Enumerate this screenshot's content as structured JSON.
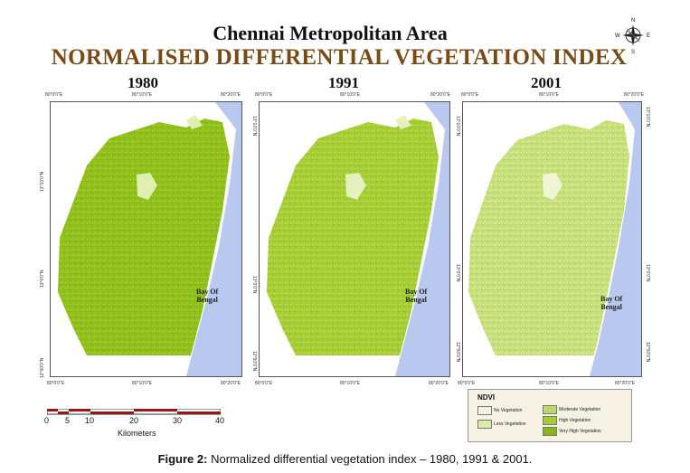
{
  "header": {
    "title": "Chennai Metropolitan Area",
    "subtitle": "NORMALISED DIFFERENTIAL VEGETATION INDEX"
  },
  "compass": {
    "n": "N",
    "s": "S",
    "e": "E",
    "w": "W"
  },
  "panels": [
    {
      "year": "1980",
      "fill": "#8fbf1a",
      "top_ticks": [
        "80°0'0\"E",
        "80°10'0\"E",
        "80°20'0\"E"
      ],
      "bottom_ticks": [
        "80°0'0\"E",
        "80°10'0\"E",
        "80°20'0\"E"
      ],
      "left_ticks": [
        "13°10'0\"N",
        "13°0'0\"N",
        "12°50'0\"N"
      ],
      "bay_label": "Bay Of\nBengal"
    },
    {
      "year": "1991",
      "fill": "#a6cc33",
      "top_ticks": [
        "80°0'0\"E",
        "80°10'0\"E",
        "80°20'0\"E"
      ],
      "bottom_ticks": [
        "80°0'0\"E",
        "80°10'0\"E",
        "80°20'0\"E"
      ],
      "left_ticks": [
        "13°10'0\"N",
        "13°0'0\"N",
        "12°50'0\"N"
      ],
      "bay_label": "Bay Of\nBengal"
    },
    {
      "year": "2001",
      "fill": "#c6df78",
      "top_ticks": [
        "80°0'0\"E",
        "80°10'0\"E",
        "80°20'0\"E"
      ],
      "bottom_ticks": [
        "80°0'0\"E",
        "80°10'0\"E",
        "80°20'0\"E"
      ],
      "left_ticks": [
        "13°10'0\"N",
        "13°0'0\"N",
        "12°50'0\"N"
      ],
      "right_ticks": [
        "13°10'0\"N",
        "13°0'0\"N",
        "12°50'0\"N"
      ],
      "bay_label": "Bay Of\nBengal"
    }
  ],
  "water_color": "#b8c8ee",
  "scale": {
    "labels": [
      "0",
      "5",
      "10",
      "20",
      "30",
      "40"
    ],
    "unit": "Kilometers"
  },
  "legend": {
    "title": "NDVI",
    "items": [
      {
        "label": "No Vegetation",
        "color": "#f1f4da"
      },
      {
        "label": "Less Vegetation",
        "color": "#dcebaa"
      },
      {
        "label": "Moderate Vegetation",
        "color": "#bcd86a"
      },
      {
        "label": "High Vegetation",
        "color": "#a6cc33"
      },
      {
        "label": "Very High Vegetation",
        "color": "#86b814"
      }
    ]
  },
  "caption": {
    "bold": "Figure 2:",
    "text": " Normalized differential vegetation index – 1980, 1991 & 2001."
  }
}
